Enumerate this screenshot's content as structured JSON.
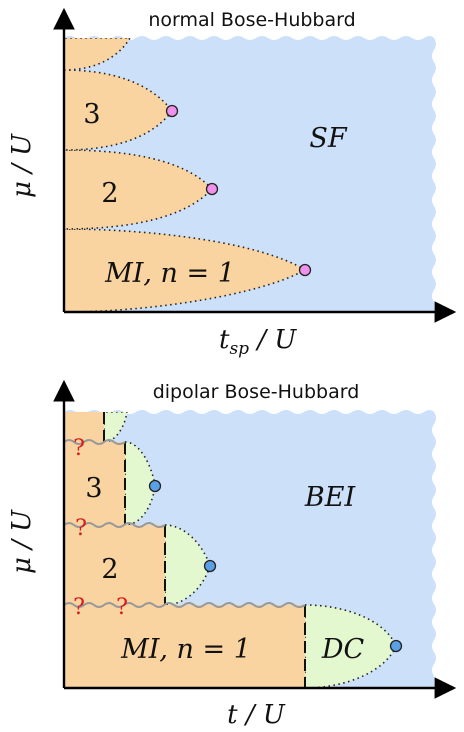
{
  "colors": {
    "mott": "#f9d4a0",
    "superfluid": "#cce0fa",
    "dipole_condensate": "#e3f8cf",
    "critical_point_top": "#ee92ee",
    "critical_point_bottom": "#5aa0e6",
    "question": "#d61c1c",
    "wavy": "#999999"
  },
  "top_panel": {
    "title": "normal Bose-Hubbard",
    "x_axis": "t_sp / U",
    "x_axis_main": "t",
    "x_axis_sub": "sp",
    "x_axis_rest": " / U",
    "y_axis": "μ / U",
    "phase_sf": "SF",
    "lobe_1": "MI, n = 1",
    "lobe_2": "2",
    "lobe_3": "3"
  },
  "bottom_panel": {
    "title": "dipolar Bose-Hubbard",
    "x_axis": "t / U",
    "y_axis": "μ / U",
    "phase_bei": "BEI",
    "phase_dc": "DC",
    "lobe_1": "MI, n = 1",
    "lobe_2": "2",
    "lobe_3": "3",
    "question_mark": "?"
  }
}
